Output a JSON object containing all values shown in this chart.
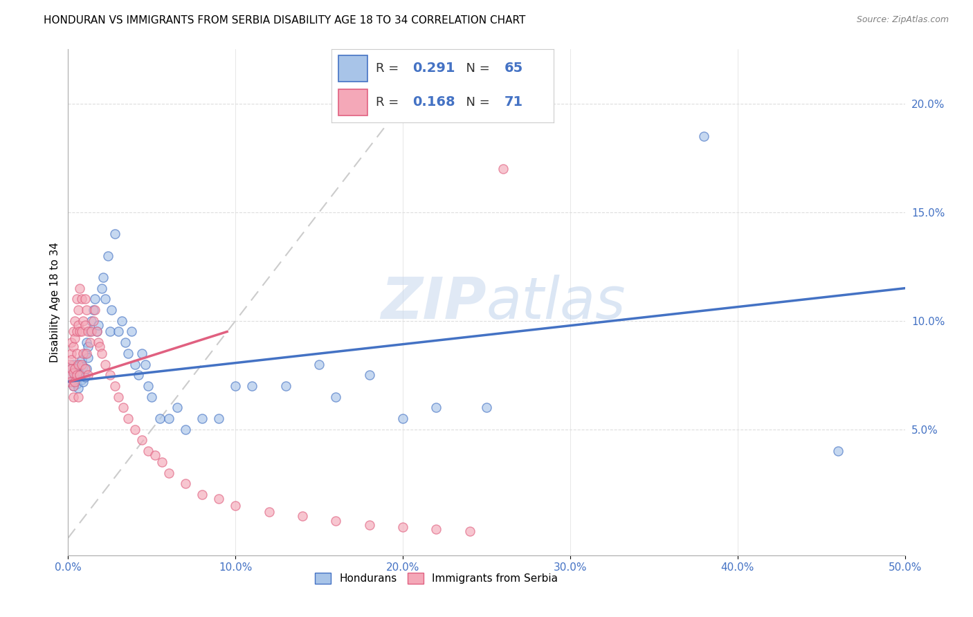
{
  "title": "HONDURAN VS IMMIGRANTS FROM SERBIA DISABILITY AGE 18 TO 34 CORRELATION CHART",
  "source": "Source: ZipAtlas.com",
  "ylabel": "Disability Age 18 to 34",
  "ylabel_right_values": [
    0.05,
    0.1,
    0.15,
    0.2
  ],
  "xmin": 0.0,
  "xmax": 0.5,
  "ymin": -0.008,
  "ymax": 0.225,
  "R_honduran": 0.291,
  "N_honduran": 65,
  "R_serbia": 0.168,
  "N_serbia": 71,
  "color_honduran": "#a8c4e8",
  "color_serbia": "#f4a8b8",
  "color_honduran_line": "#4472C4",
  "color_serbia_line": "#E06080",
  "color_diag_line": "#cccccc",
  "watermark_zip": "ZIP",
  "watermark_atlas": "atlas",
  "honduran_x": [
    0.001,
    0.002,
    0.002,
    0.003,
    0.003,
    0.004,
    0.004,
    0.005,
    0.005,
    0.005,
    0.006,
    0.006,
    0.007,
    0.007,
    0.008,
    0.008,
    0.009,
    0.009,
    0.01,
    0.01,
    0.011,
    0.011,
    0.012,
    0.012,
    0.013,
    0.014,
    0.015,
    0.016,
    0.017,
    0.018,
    0.02,
    0.021,
    0.022,
    0.024,
    0.025,
    0.026,
    0.028,
    0.03,
    0.032,
    0.034,
    0.036,
    0.038,
    0.04,
    0.042,
    0.044,
    0.046,
    0.048,
    0.05,
    0.055,
    0.06,
    0.065,
    0.07,
    0.08,
    0.09,
    0.1,
    0.11,
    0.13,
    0.15,
    0.16,
    0.18,
    0.2,
    0.22,
    0.25,
    0.38,
    0.46
  ],
  "honduran_y": [
    0.075,
    0.078,
    0.072,
    0.08,
    0.07,
    0.076,
    0.074,
    0.079,
    0.073,
    0.071,
    0.077,
    0.069,
    0.08,
    0.075,
    0.082,
    0.073,
    0.079,
    0.072,
    0.085,
    0.074,
    0.09,
    0.078,
    0.088,
    0.083,
    0.095,
    0.1,
    0.105,
    0.11,
    0.095,
    0.098,
    0.115,
    0.12,
    0.11,
    0.13,
    0.095,
    0.105,
    0.14,
    0.095,
    0.1,
    0.09,
    0.085,
    0.095,
    0.08,
    0.075,
    0.085,
    0.08,
    0.07,
    0.065,
    0.055,
    0.055,
    0.06,
    0.05,
    0.055,
    0.055,
    0.07,
    0.07,
    0.07,
    0.08,
    0.065,
    0.075,
    0.055,
    0.06,
    0.06,
    0.185,
    0.04
  ],
  "serbia_x": [
    0.001,
    0.001,
    0.001,
    0.002,
    0.002,
    0.002,
    0.002,
    0.003,
    0.003,
    0.003,
    0.003,
    0.003,
    0.004,
    0.004,
    0.004,
    0.004,
    0.005,
    0.005,
    0.005,
    0.005,
    0.006,
    0.006,
    0.006,
    0.006,
    0.007,
    0.007,
    0.007,
    0.008,
    0.008,
    0.008,
    0.009,
    0.009,
    0.01,
    0.01,
    0.01,
    0.011,
    0.011,
    0.012,
    0.012,
    0.013,
    0.014,
    0.015,
    0.016,
    0.017,
    0.018,
    0.019,
    0.02,
    0.022,
    0.025,
    0.028,
    0.03,
    0.033,
    0.036,
    0.04,
    0.044,
    0.048,
    0.052,
    0.056,
    0.06,
    0.07,
    0.08,
    0.09,
    0.1,
    0.12,
    0.14,
    0.16,
    0.18,
    0.2,
    0.22,
    0.24,
    0.26
  ],
  "serbia_y": [
    0.075,
    0.08,
    0.072,
    0.085,
    0.078,
    0.082,
    0.09,
    0.095,
    0.088,
    0.076,
    0.07,
    0.065,
    0.1,
    0.092,
    0.078,
    0.072,
    0.11,
    0.095,
    0.085,
    0.075,
    0.105,
    0.098,
    0.08,
    0.065,
    0.115,
    0.095,
    0.075,
    0.11,
    0.095,
    0.08,
    0.1,
    0.085,
    0.11,
    0.098,
    0.078,
    0.105,
    0.085,
    0.095,
    0.075,
    0.09,
    0.095,
    0.1,
    0.105,
    0.095,
    0.09,
    0.088,
    0.085,
    0.08,
    0.075,
    0.07,
    0.065,
    0.06,
    0.055,
    0.05,
    0.045,
    0.04,
    0.038,
    0.035,
    0.03,
    0.025,
    0.02,
    0.018,
    0.015,
    0.012,
    0.01,
    0.008,
    0.006,
    0.005,
    0.004,
    0.003,
    0.17
  ]
}
